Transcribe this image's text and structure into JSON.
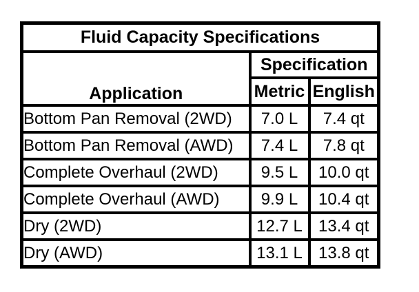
{
  "table": {
    "title": "Fluid Capacity Specifications",
    "headers": {
      "application": "Application",
      "specification": "Specification",
      "metric": "Metric",
      "english": "English"
    },
    "rows": [
      {
        "application": "Bottom Pan Removal (2WD)",
        "metric": "7.0 L",
        "english": "7.4 qt"
      },
      {
        "application": "Bottom Pan Removal (AWD)",
        "metric": "7.4 L",
        "english": "7.8 qt"
      },
      {
        "application": "Complete Overhaul (2WD)",
        "metric": "9.5 L",
        "english": "10.0 qt"
      },
      {
        "application": "Complete Overhaul (AWD)",
        "metric": "9.9 L",
        "english": "10.4 qt"
      },
      {
        "application": "Dry (2WD)",
        "metric": "12.7 L",
        "english": "13.4 qt"
      },
      {
        "application": "Dry (AWD)",
        "metric": "13.1 L",
        "english": "13.8 qt"
      }
    ],
    "colors": {
      "border": "#000000",
      "background": "#ffffff",
      "text": "#000000"
    }
  }
}
